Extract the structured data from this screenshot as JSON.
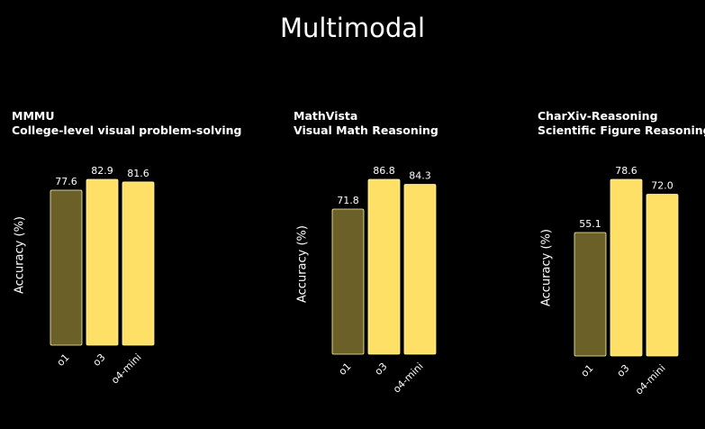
{
  "page": {
    "title": "Multimodal"
  },
  "chart_data": [
    {
      "type": "bar",
      "title": "MMMU",
      "subtitle": "College-level visual problem-solving",
      "ylabel": "Accuracy (%)",
      "categories": [
        "o1",
        "o3",
        "o4-mini"
      ],
      "values": [
        77.6,
        82.9,
        81.6
      ],
      "value_labels": [
        "77.6",
        "82.9",
        "81.6"
      ],
      "colors": [
        "#6b6028",
        "#ffe066",
        "#ffe066"
      ]
    },
    {
      "type": "bar",
      "title": "MathVista",
      "subtitle": "Visual Math Reasoning",
      "ylabel": "Accuracy (%)",
      "categories": [
        "o1",
        "o3",
        "o4-mini"
      ],
      "values": [
        71.8,
        86.8,
        84.3
      ],
      "value_labels": [
        "71.8",
        "86.8",
        "84.3"
      ],
      "colors": [
        "#6b6028",
        "#ffe066",
        "#ffe066"
      ]
    },
    {
      "type": "bar",
      "title": "CharXiv-Reasoning",
      "subtitle": "Scientific Figure Reasoning",
      "ylabel": "Accuracy (%)",
      "categories": [
        "o1",
        "o3",
        "o4-mini"
      ],
      "values": [
        55.1,
        78.6,
        72.0
      ],
      "value_labels": [
        "55.1",
        "78.6",
        "72.0"
      ],
      "colors": [
        "#6b6028",
        "#ffe066",
        "#ffe066"
      ]
    }
  ]
}
